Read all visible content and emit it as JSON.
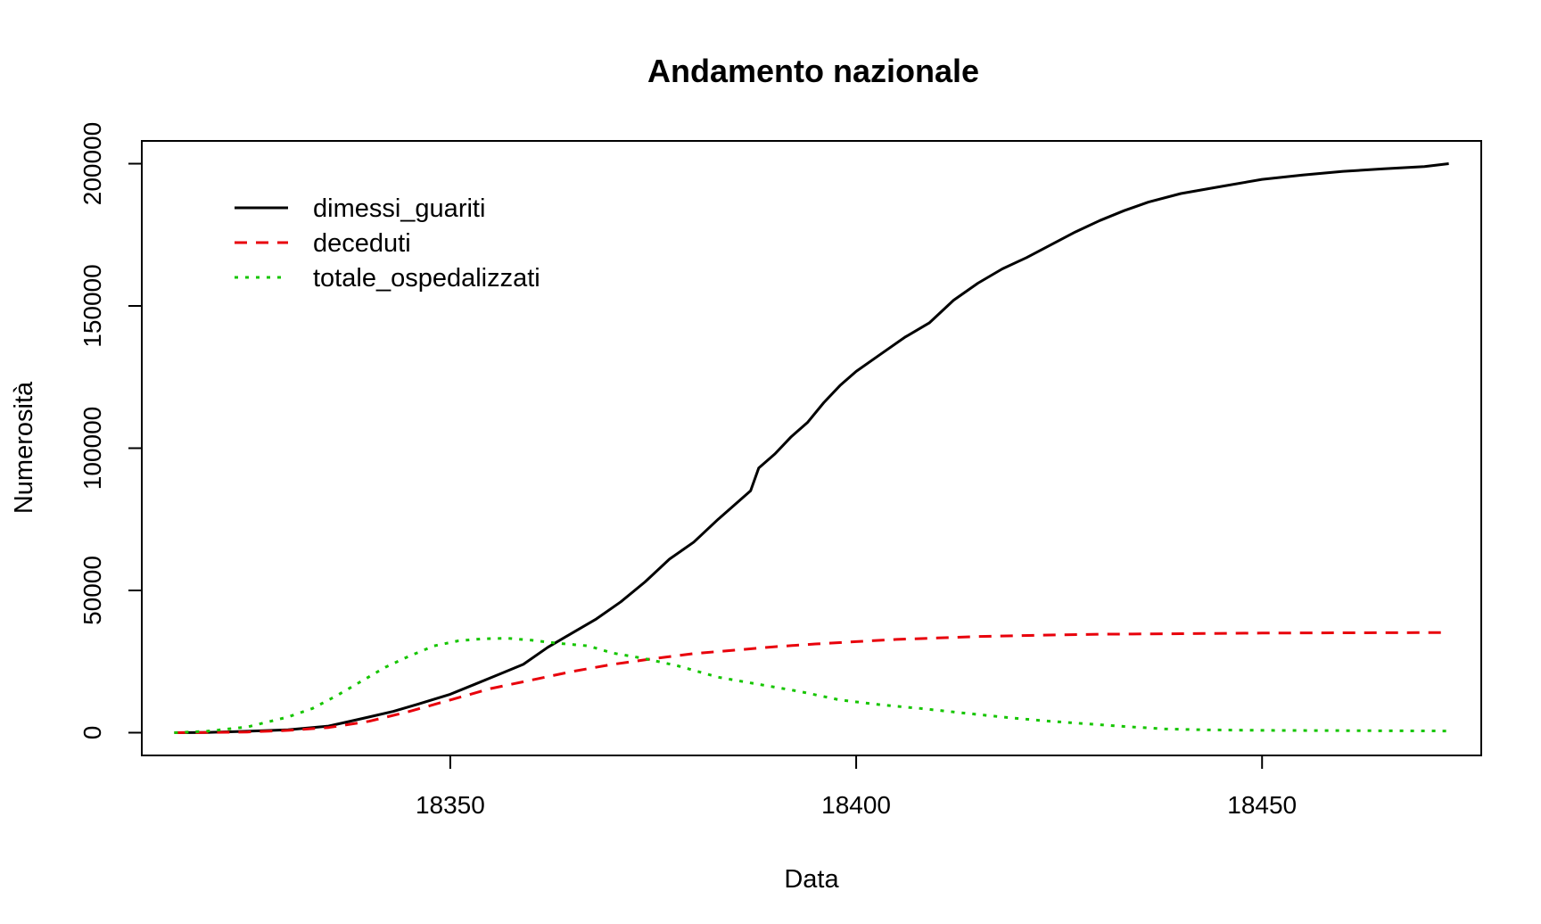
{
  "chart_data": {
    "type": "line",
    "title": "Andamento nazionale",
    "xlabel": "Data",
    "ylabel": "Numerosità",
    "xlim": [
      18312,
      18477
    ],
    "ylim": [
      -8000,
      208000
    ],
    "x_ticks": [
      18350,
      18400,
      18450
    ],
    "x_tick_labels": [
      "18350",
      "18400",
      "18450"
    ],
    "y_ticks": [
      0,
      50000,
      100000,
      150000,
      200000
    ],
    "y_tick_labels": [
      "0",
      "50000",
      "100000",
      "150000",
      "200000"
    ],
    "grid": false,
    "legend_position": "top-left",
    "series": [
      {
        "name": "dimessi_guariti",
        "color": "#000000",
        "dash": "solid",
        "points": [
          [
            18316,
            0
          ],
          [
            18320,
            100
          ],
          [
            18325,
            500
          ],
          [
            18330,
            1000
          ],
          [
            18335,
            2300
          ],
          [
            18340,
            5500
          ],
          [
            18343,
            7500
          ],
          [
            18346,
            10000
          ],
          [
            18350,
            13500
          ],
          [
            18353,
            17000
          ],
          [
            18356,
            20500
          ],
          [
            18359,
            24000
          ],
          [
            18362,
            30000
          ],
          [
            18365,
            35000
          ],
          [
            18368,
            40000
          ],
          [
            18371,
            46000
          ],
          [
            18374,
            53000
          ],
          [
            18377,
            61000
          ],
          [
            18380,
            67000
          ],
          [
            18383,
            75000
          ],
          [
            18385,
            80000
          ],
          [
            18387,
            85000
          ],
          [
            18388,
            93000
          ],
          [
            18390,
            98000
          ],
          [
            18392,
            104000
          ],
          [
            18394,
            109000
          ],
          [
            18396,
            116000
          ],
          [
            18398,
            122000
          ],
          [
            18400,
            127000
          ],
          [
            18403,
            133000
          ],
          [
            18406,
            139000
          ],
          [
            18409,
            144000
          ],
          [
            18412,
            152000
          ],
          [
            18415,
            158000
          ],
          [
            18418,
            163000
          ],
          [
            18421,
            167000
          ],
          [
            18424,
            171500
          ],
          [
            18427,
            176000
          ],
          [
            18430,
            180000
          ],
          [
            18433,
            183500
          ],
          [
            18436,
            186500
          ],
          [
            18440,
            189500
          ],
          [
            18445,
            192000
          ],
          [
            18450,
            194500
          ],
          [
            18455,
            196000
          ],
          [
            18460,
            197300
          ],
          [
            18465,
            198200
          ],
          [
            18470,
            199000
          ],
          [
            18473,
            200000
          ]
        ]
      },
      {
        "name": "deceduti",
        "color": "#e8000b",
        "dash": "dashed",
        "points": [
          [
            18316,
            0
          ],
          [
            18320,
            50
          ],
          [
            18325,
            250
          ],
          [
            18330,
            800
          ],
          [
            18335,
            1800
          ],
          [
            18340,
            4000
          ],
          [
            18345,
            7500
          ],
          [
            18350,
            11500
          ],
          [
            18355,
            15500
          ],
          [
            18360,
            18500
          ],
          [
            18365,
            21500
          ],
          [
            18370,
            24000
          ],
          [
            18375,
            26000
          ],
          [
            18380,
            27800
          ],
          [
            18385,
            29000
          ],
          [
            18390,
            30200
          ],
          [
            18395,
            31200
          ],
          [
            18400,
            32000
          ],
          [
            18405,
            32800
          ],
          [
            18410,
            33300
          ],
          [
            18415,
            33800
          ],
          [
            18420,
            34100
          ],
          [
            18425,
            34400
          ],
          [
            18430,
            34600
          ],
          [
            18440,
            34800
          ],
          [
            18450,
            35000
          ],
          [
            18460,
            35100
          ],
          [
            18473,
            35200
          ]
        ]
      },
      {
        "name": "totale_ospedalizzati",
        "color": "#16c500",
        "dash": "dotted",
        "points": [
          [
            18316,
            0
          ],
          [
            18320,
            500
          ],
          [
            18325,
            2000
          ],
          [
            18330,
            5500
          ],
          [
            18333,
            8500
          ],
          [
            18336,
            13000
          ],
          [
            18339,
            18000
          ],
          [
            18342,
            23000
          ],
          [
            18345,
            27000
          ],
          [
            18348,
            30500
          ],
          [
            18351,
            32300
          ],
          [
            18354,
            33000
          ],
          [
            18357,
            33200
          ],
          [
            18360,
            32500
          ],
          [
            18363,
            31500
          ],
          [
            18367,
            30500
          ],
          [
            18370,
            28000
          ],
          [
            18374,
            26000
          ],
          [
            18378,
            23500
          ],
          [
            18383,
            19500
          ],
          [
            18388,
            17000
          ],
          [
            18393,
            14500
          ],
          [
            18398,
            11500
          ],
          [
            18403,
            9800
          ],
          [
            18408,
            8500
          ],
          [
            18413,
            7000
          ],
          [
            18418,
            5500
          ],
          [
            18423,
            4200
          ],
          [
            18428,
            3200
          ],
          [
            18433,
            2200
          ],
          [
            18438,
            1300
          ],
          [
            18443,
            1000
          ],
          [
            18450,
            800
          ],
          [
            18460,
            700
          ],
          [
            18473,
            600
          ]
        ]
      }
    ]
  }
}
